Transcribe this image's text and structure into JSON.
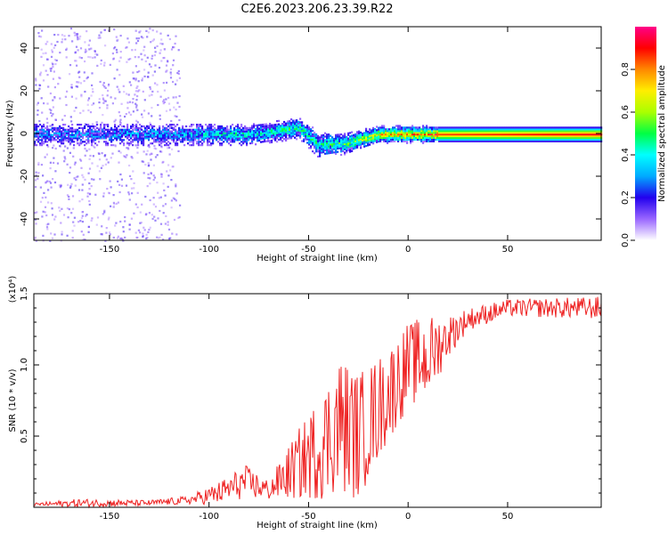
{
  "title": "C2E6.2023.206.23.39.R22",
  "chart_data": [
    {
      "type": "heatmap",
      "xlabel": "Height of straight line (km)",
      "ylabel": "Frequency (Hz)",
      "xlim": [
        -188,
        97
      ],
      "ylim": [
        -50,
        50
      ],
      "xticks": [
        -150,
        -100,
        -50,
        0,
        50
      ],
      "xtick_labels": [
        "-150",
        "-100",
        "-50",
        "0",
        "50"
      ],
      "yticks": [
        -40,
        -20,
        0,
        20,
        40
      ],
      "ytick_labels": [
        "-40",
        "-20",
        "0",
        "20",
        "40"
      ],
      "colorbar": {
        "label": "Normalized spectral amplitude",
        "range": [
          0,
          1
        ],
        "ticks": [
          0.0,
          0.2,
          0.4,
          0.6,
          0.8
        ],
        "tick_labels": [
          "0.0",
          "0.2",
          "0.4",
          "0.6",
          "0.8"
        ],
        "colormap": [
          "#ffffff",
          "#9966ff",
          "#2200ee",
          "#00aaff",
          "#00ffff",
          "#00ff44",
          "#aaff00",
          "#ffee00",
          "#ff8800",
          "#ff0000",
          "#ff0088"
        ]
      },
      "band": [
        {
          "x": -185,
          "center": 0,
          "halfwidth": 3,
          "amplitude": 0.25
        },
        {
          "x": -150,
          "center": 0,
          "halfwidth": 3,
          "amplitude": 0.25
        },
        {
          "x": -115,
          "center": 0,
          "halfwidth": 3,
          "amplitude": 0.3
        },
        {
          "x": -110,
          "center": 0,
          "halfwidth": 3,
          "amplitude": 0.35
        },
        {
          "x": -80,
          "center": 0,
          "halfwidth": 3,
          "amplitude": 0.4
        },
        {
          "x": -55,
          "center": 3,
          "halfwidth": 3,
          "amplitude": 0.45
        },
        {
          "x": -45,
          "center": -5,
          "halfwidth": 4,
          "amplitude": 0.4
        },
        {
          "x": -30,
          "center": -4,
          "halfwidth": 3,
          "amplitude": 0.5
        },
        {
          "x": -15,
          "center": 0,
          "halfwidth": 2,
          "amplitude": 0.7
        },
        {
          "x": 15,
          "center": 0,
          "halfwidth": 2,
          "amplitude": 0.85
        },
        {
          "x": 97,
          "center": 0,
          "halfwidth": 2,
          "amplitude": 0.92
        }
      ],
      "noise": {
        "x_range": [
          -188,
          -115
        ],
        "amplitude": 0.05
      }
    },
    {
      "type": "line",
      "xlabel": "Height of straight line (km)",
      "ylabel": "SNR (10 * v/v)",
      "y_multiplier": "(x10⁴)",
      "xlim": [
        -188,
        97
      ],
      "ylim": [
        0,
        1.5
      ],
      "xticks": [
        -150,
        -100,
        -50,
        0,
        50
      ],
      "xtick_labels": [
        "-150",
        "-100",
        "-50",
        "0",
        "50"
      ],
      "yticks": [
        0.5,
        1.0,
        1.5
      ],
      "ytick_labels": [
        "0.5",
        "1.0",
        "1.5"
      ],
      "color": "#ee2222",
      "series": [
        {
          "values_envelope": [
            {
              "x": -188,
              "y": 0.02,
              "noise": 0.01
            },
            {
              "x": -165,
              "y": 0.03,
              "noise": 0.03
            },
            {
              "x": -130,
              "y": 0.03,
              "noise": 0.02
            },
            {
              "x": -110,
              "y": 0.05,
              "noise": 0.03
            },
            {
              "x": -95,
              "y": 0.1,
              "noise": 0.08
            },
            {
              "x": -82,
              "y": 0.18,
              "noise": 0.12
            },
            {
              "x": -70,
              "y": 0.12,
              "noise": 0.07
            },
            {
              "x": -55,
              "y": 0.3,
              "noise": 0.25
            },
            {
              "x": -42,
              "y": 0.45,
              "noise": 0.4
            },
            {
              "x": -35,
              "y": 0.6,
              "noise": 0.5
            },
            {
              "x": -25,
              "y": 0.5,
              "noise": 0.45
            },
            {
              "x": -12,
              "y": 0.75,
              "noise": 0.35
            },
            {
              "x": 0,
              "y": 1.0,
              "noise": 0.3
            },
            {
              "x": 10,
              "y": 1.05,
              "noise": 0.3
            },
            {
              "x": 20,
              "y": 1.2,
              "noise": 0.15
            },
            {
              "x": 30,
              "y": 1.32,
              "noise": 0.08
            },
            {
              "x": 50,
              "y": 1.4,
              "noise": 0.06
            },
            {
              "x": 97,
              "y": 1.4,
              "noise": 0.08
            }
          ]
        }
      ]
    }
  ]
}
